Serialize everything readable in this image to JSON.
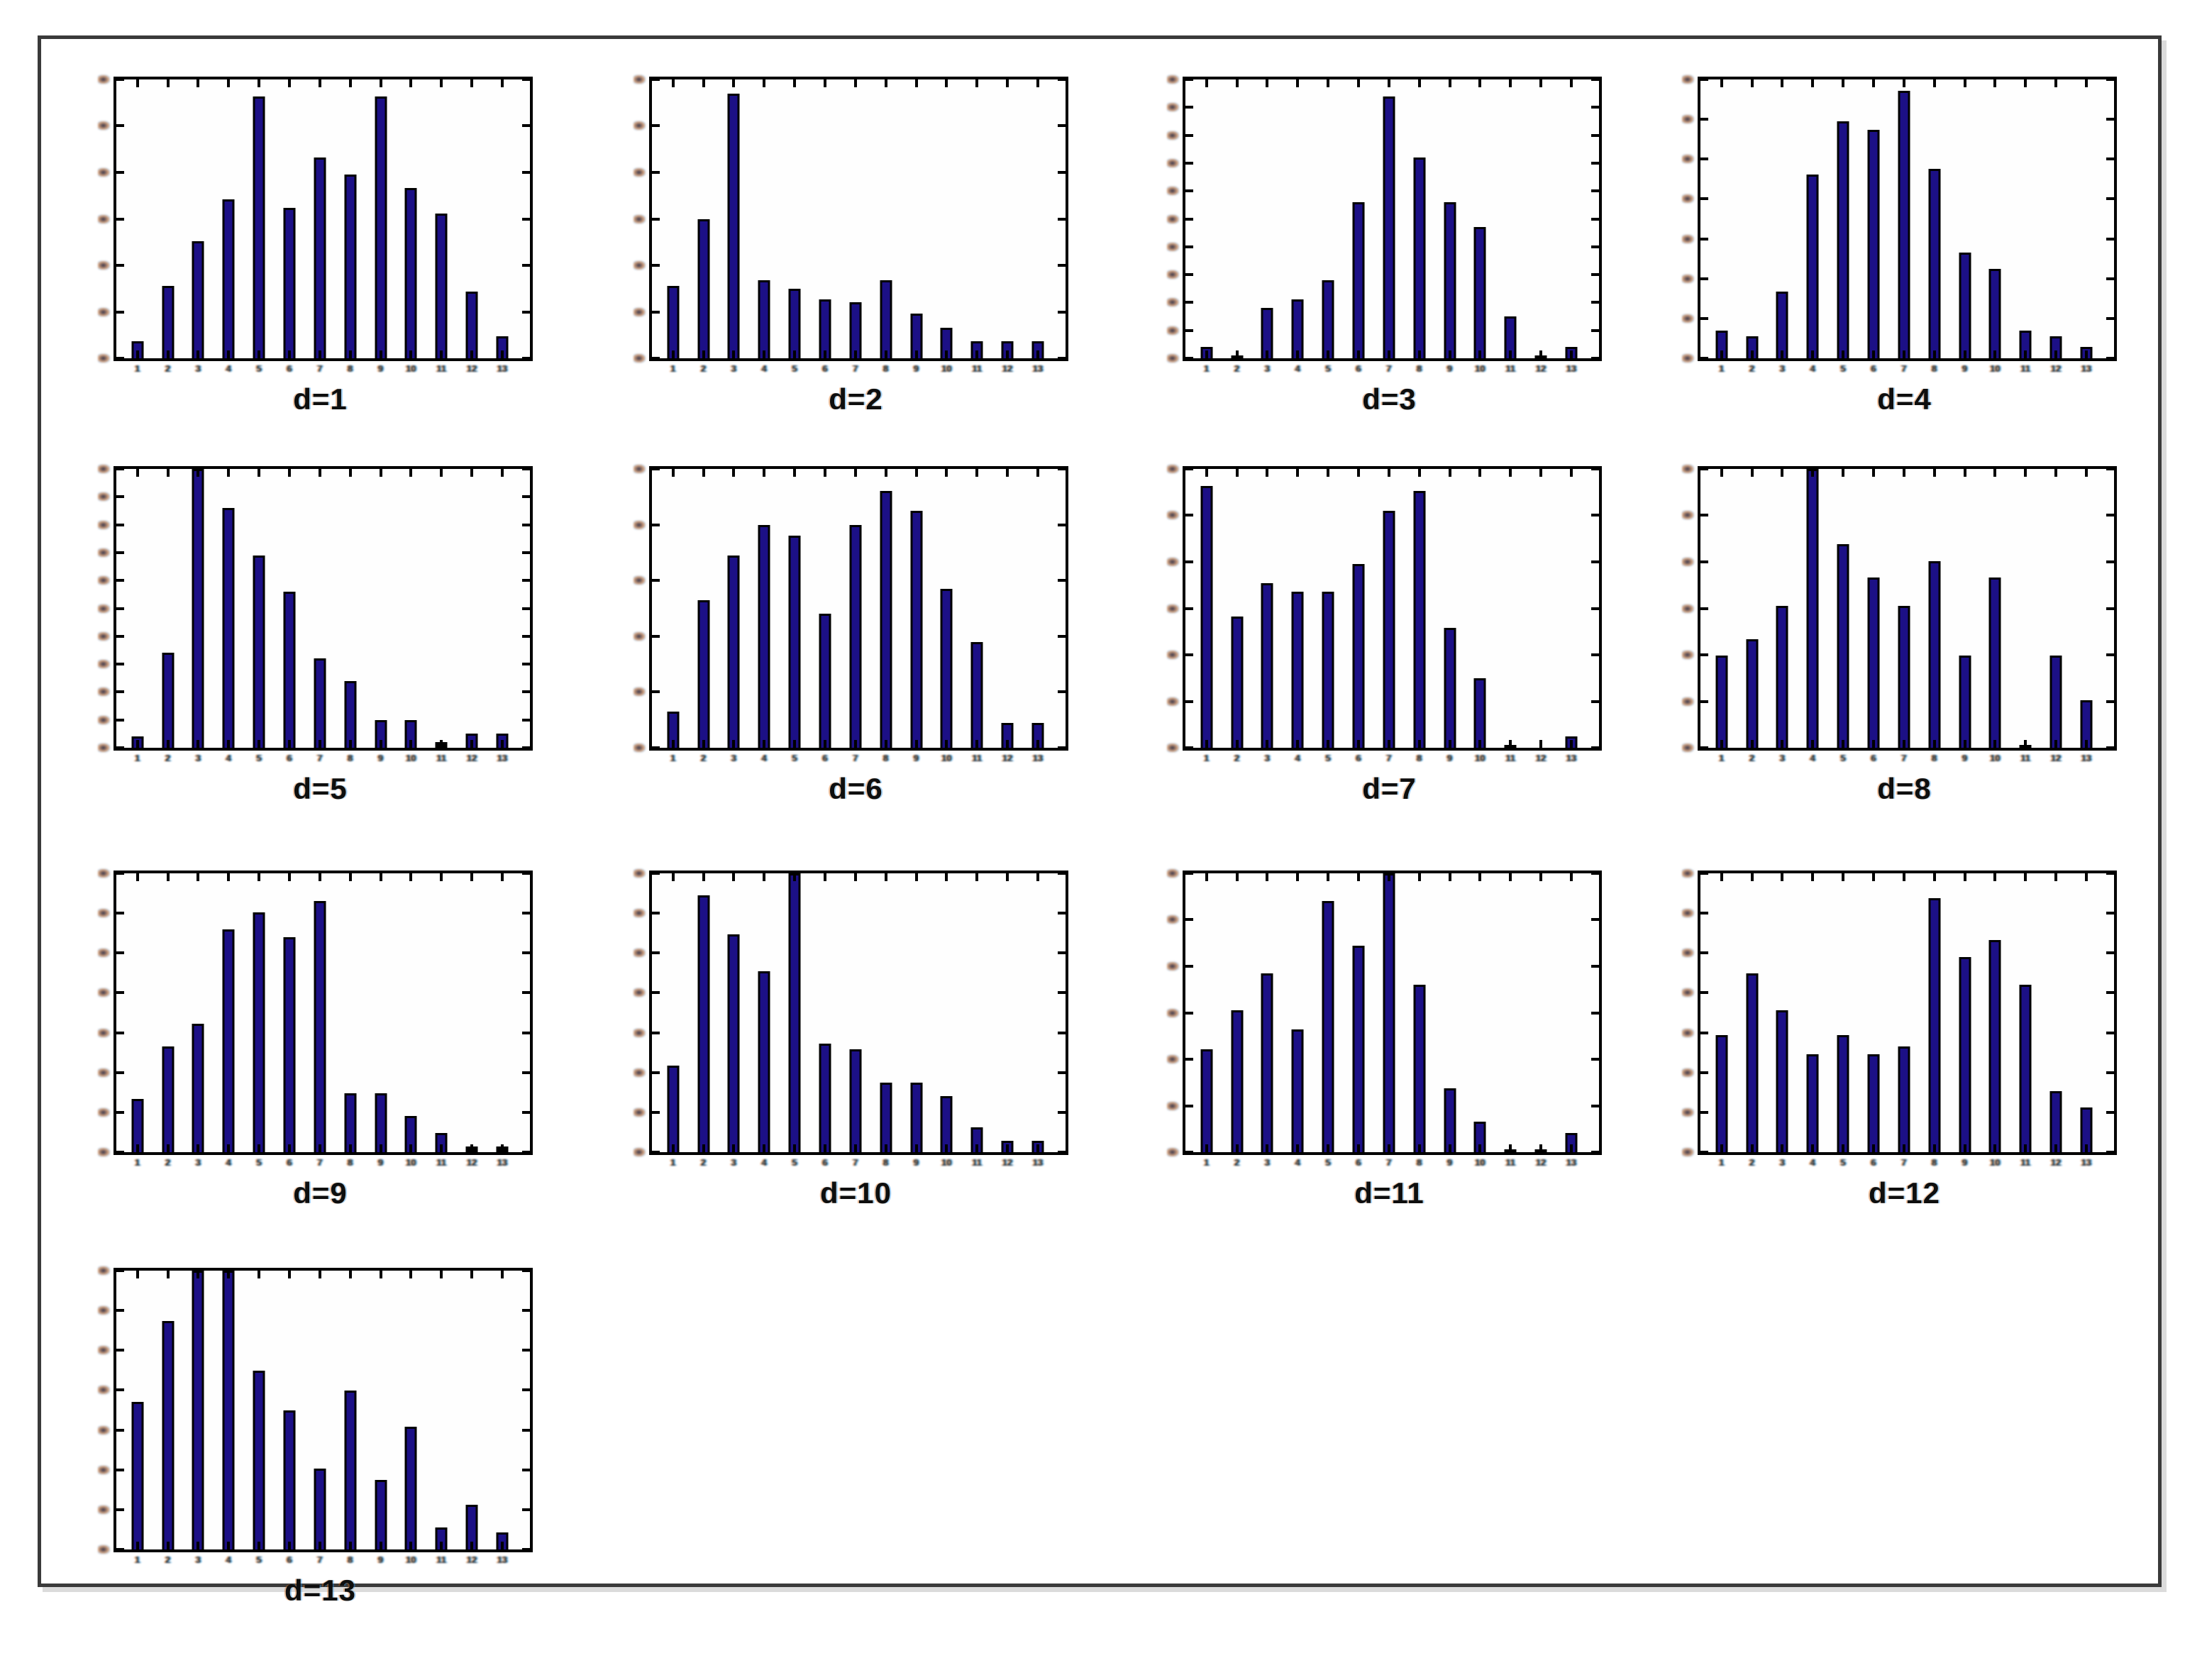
{
  "figure": {
    "background": "#ffffff",
    "frame_color": "#3a3a3a",
    "bar_fill": "#1c1086",
    "bar_edge": "#000000",
    "axis_color": "#000000",
    "caption_color": "#0e0e0e"
  },
  "chart_data": {
    "type": "bar",
    "title": "",
    "xlabel": "",
    "ylabel": "",
    "grid": false,
    "legend": "none",
    "categories": [
      1,
      2,
      3,
      4,
      5,
      6,
      7,
      8,
      9,
      10,
      11,
      12,
      13
    ],
    "x_tick_labels": [
      "1",
      "2",
      "3",
      "4",
      "5",
      "6",
      "7",
      "8",
      "9",
      "10",
      "11",
      "12",
      "13"
    ],
    "value_scale": "fraction of y-axis full height; y-axis tick numerals illegible in source image",
    "charts": [
      {
        "label": "d=1",
        "n_yticks": 7,
        "values": [
          0.06,
          0.26,
          0.42,
          0.57,
          0.94,
          0.54,
          0.72,
          0.66,
          0.94,
          0.61,
          0.52,
          0.24,
          0.08
        ]
      },
      {
        "label": "d=2",
        "n_yticks": 7,
        "values": [
          0.26,
          0.5,
          0.95,
          0.28,
          0.25,
          0.21,
          0.2,
          0.28,
          0.16,
          0.11,
          0.06,
          0.06,
          0.06
        ]
      },
      {
        "label": "d=3",
        "n_yticks": 11,
        "values": [
          0.04,
          0.01,
          0.18,
          0.21,
          0.28,
          0.56,
          0.94,
          0.72,
          0.56,
          0.47,
          0.15,
          0.01,
          0.04
        ]
      },
      {
        "label": "d=4",
        "n_yticks": 8,
        "values": [
          0.1,
          0.08,
          0.24,
          0.66,
          0.85,
          0.82,
          0.96,
          0.68,
          0.38,
          0.32,
          0.1,
          0.08,
          0.04
        ]
      },
      {
        "label": "d=5",
        "n_yticks": 11,
        "values": [
          0.04,
          0.34,
          1.0,
          0.86,
          0.69,
          0.56,
          0.32,
          0.24,
          0.1,
          0.1,
          0.02,
          0.05,
          0.05
        ]
      },
      {
        "label": "d=6",
        "n_yticks": 6,
        "values": [
          0.13,
          0.53,
          0.69,
          0.8,
          0.76,
          0.48,
          0.8,
          0.92,
          0.85,
          0.57,
          0.38,
          0.09,
          0.09
        ]
      },
      {
        "label": "d=7",
        "n_yticks": 7,
        "values": [
          0.94,
          0.47,
          0.59,
          0.56,
          0.56,
          0.66,
          0.85,
          0.92,
          0.43,
          0.25,
          0.01,
          0.0,
          0.04
        ]
      },
      {
        "label": "d=8",
        "n_yticks": 7,
        "values": [
          0.33,
          0.39,
          0.51,
          1.0,
          0.73,
          0.61,
          0.51,
          0.67,
          0.33,
          0.61,
          0.01,
          0.33,
          0.17
        ]
      },
      {
        "label": "d=9",
        "n_yticks": 8,
        "values": [
          0.19,
          0.38,
          0.46,
          0.8,
          0.86,
          0.77,
          0.9,
          0.21,
          0.21,
          0.13,
          0.07,
          0.02,
          0.02
        ]
      },
      {
        "label": "d=10",
        "n_yticks": 8,
        "values": [
          0.31,
          0.92,
          0.78,
          0.65,
          1.0,
          0.39,
          0.37,
          0.25,
          0.25,
          0.2,
          0.09,
          0.04,
          0.04
        ]
      },
      {
        "label": "d=11",
        "n_yticks": 7,
        "values": [
          0.37,
          0.51,
          0.64,
          0.44,
          0.9,
          0.74,
          1.0,
          0.6,
          0.23,
          0.11,
          0.01,
          0.01,
          0.07
        ]
      },
      {
        "label": "d=12",
        "n_yticks": 8,
        "values": [
          0.42,
          0.64,
          0.51,
          0.35,
          0.42,
          0.35,
          0.38,
          0.91,
          0.7,
          0.76,
          0.6,
          0.22,
          0.16
        ]
      },
      {
        "label": "d=13",
        "n_yticks": 8,
        "values": [
          0.53,
          0.82,
          1.0,
          1.0,
          0.64,
          0.5,
          0.29,
          0.57,
          0.25,
          0.44,
          0.08,
          0.16,
          0.06
        ]
      }
    ]
  }
}
